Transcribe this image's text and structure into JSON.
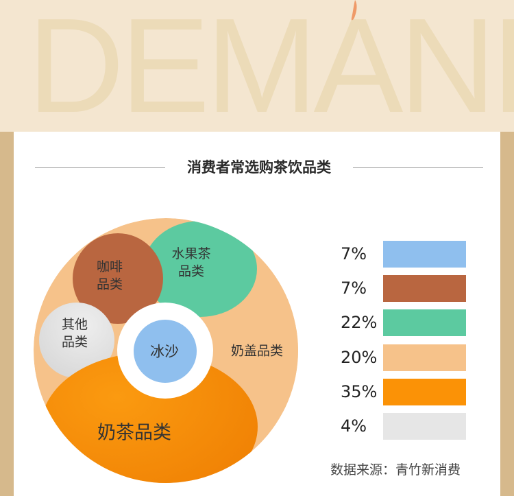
{
  "banner": {
    "watermark_text": "DEMAND"
  },
  "chart_data": {
    "type": "pie",
    "title": "消费者常选购茶饮品类",
    "categories": [
      "冰沙",
      "咖啡品类",
      "水果茶品类",
      "奶盖品类",
      "奶茶品类",
      "其他品类"
    ],
    "slice_labels": [
      "冰沙",
      "咖啡\n品类",
      "水果茶\n品类",
      "奶盖品类",
      "奶茶品类",
      "其他\n品类"
    ],
    "values": [
      7,
      7,
      22,
      20,
      35,
      4
    ],
    "value_labels": [
      "7%",
      "7%",
      "22%",
      "20%",
      "35%",
      "4%"
    ],
    "colors": [
      "#8fbfee",
      "#b96640",
      "#5ccaa0",
      "#f6c28a",
      "#fb9206",
      "#e6e6e6"
    ],
    "legend_position": "right"
  },
  "source": "数据来源：青竹新消费"
}
